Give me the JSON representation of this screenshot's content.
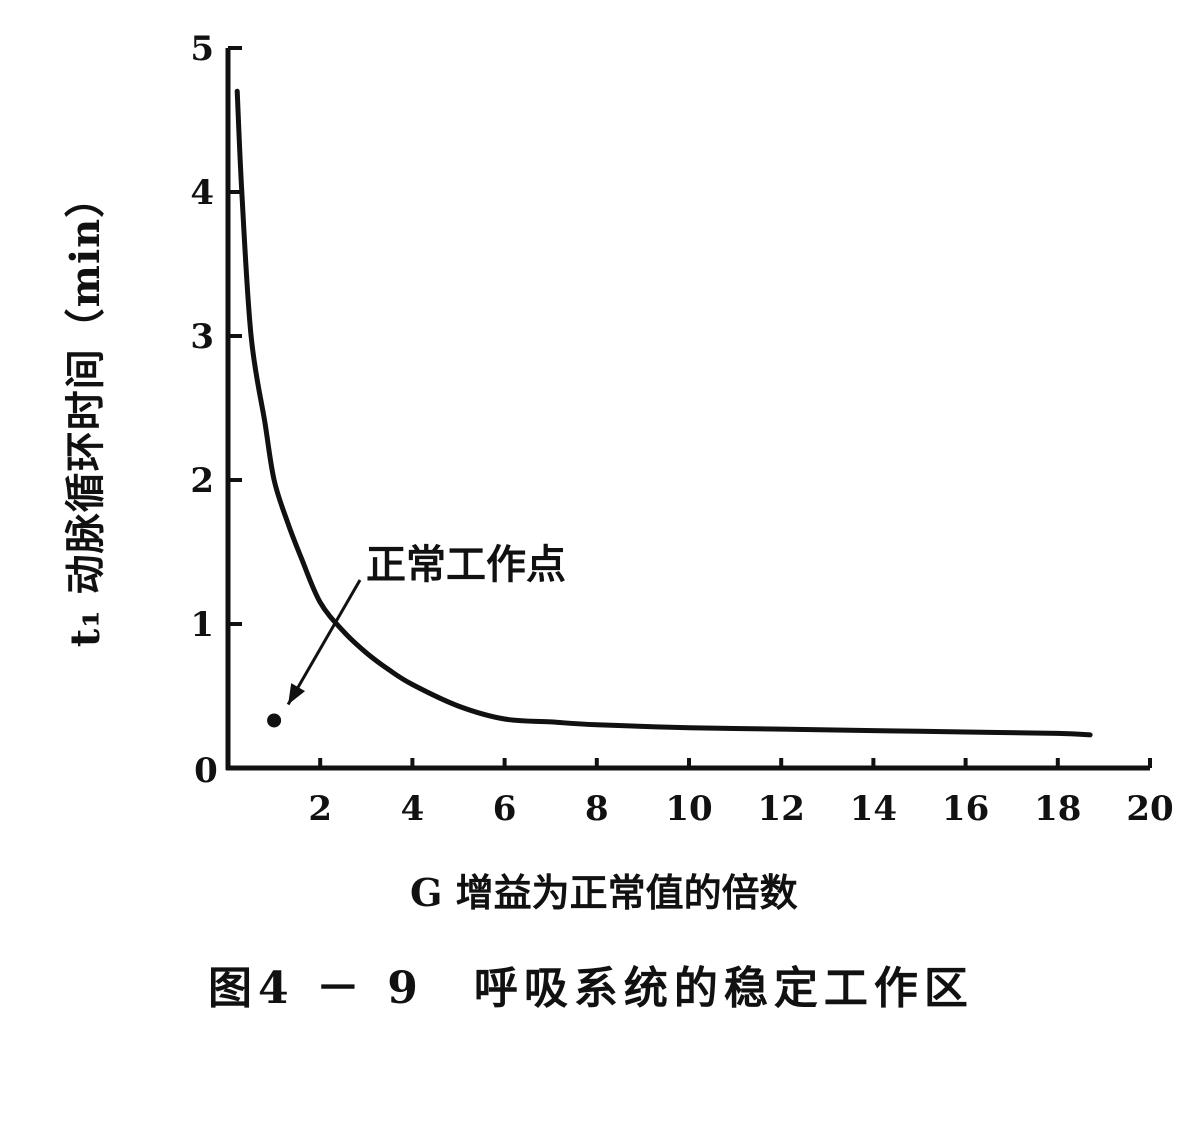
{
  "chart_data": {
    "type": "line",
    "caption": "图4 － 9　呼吸系统的稳定工作区",
    "xlabel": "G 增益为正常值的倍数",
    "ylabel": "t₁ 动脉循环时间（min）",
    "xlim": [
      0,
      20
    ],
    "ylim": [
      0,
      5
    ],
    "x_ticks": [
      "0",
      "2",
      "4",
      "6",
      "8",
      "10",
      "12",
      "14",
      "16",
      "18",
      "20"
    ],
    "x_tick_values": [
      0,
      2,
      4,
      6,
      8,
      10,
      12,
      14,
      16,
      18,
      20
    ],
    "y_ticks": [
      "1",
      "2",
      "3",
      "4",
      "5"
    ],
    "y_tick_values": [
      1,
      2,
      3,
      4,
      5
    ],
    "grid": false,
    "legend": "none",
    "series": [
      {
        "x": [
          0.2,
          0.3,
          0.5,
          0.8,
          1.0,
          1.3,
          1.6,
          2.0,
          2.5,
          3.0,
          3.5,
          4.0,
          5.0,
          6.0,
          7.0,
          8.0,
          10.0,
          12.0,
          14.0,
          16.0,
          18.0,
          18.7
        ],
        "y": [
          4.7,
          4.0,
          3.0,
          2.4,
          2.0,
          1.7,
          1.45,
          1.15,
          0.95,
          0.8,
          0.68,
          0.58,
          0.43,
          0.34,
          0.32,
          0.3,
          0.28,
          0.27,
          0.26,
          0.25,
          0.24,
          0.23
        ]
      }
    ],
    "point": {
      "label": "正常工作点",
      "x": 1.0,
      "y": 0.33
    }
  }
}
